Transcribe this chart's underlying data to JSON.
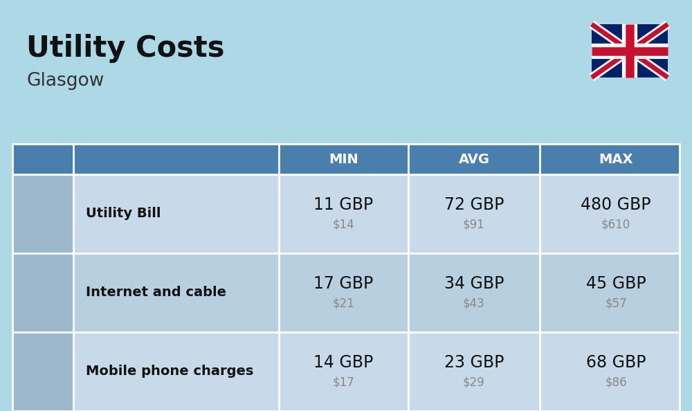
{
  "title": "Utility Costs",
  "subtitle": "Glasgow",
  "background_color": "#add8e6",
  "header_bg_color": "#4a7fad",
  "header_text_color": "#ffffff",
  "row_bg_color_odd": "#c8daea",
  "row_bg_color_even": "#b8cfe0",
  "icon_col_color": "#9db8cc",
  "table_border_color": "#ffffff",
  "col_headers": [
    "MIN",
    "AVG",
    "MAX"
  ],
  "rows": [
    {
      "label": "Utility Bill",
      "min_gbp": "11 GBP",
      "min_usd": "$14",
      "avg_gbp": "72 GBP",
      "avg_usd": "$91",
      "max_gbp": "480 GBP",
      "max_usd": "$610"
    },
    {
      "label": "Internet and cable",
      "min_gbp": "17 GBP",
      "min_usd": "$21",
      "avg_gbp": "34 GBP",
      "avg_usd": "$43",
      "max_gbp": "45 GBP",
      "max_usd": "$57"
    },
    {
      "label": "Mobile phone charges",
      "min_gbp": "14 GBP",
      "min_usd": "$17",
      "avg_gbp": "23 GBP",
      "avg_usd": "$29",
      "max_gbp": "68 GBP",
      "max_usd": "$86"
    }
  ],
  "title_fontsize": 30,
  "subtitle_fontsize": 19,
  "header_fontsize": 14,
  "label_fontsize": 14,
  "value_fontsize": 17,
  "usd_fontsize": 12,
  "flag_uk_blue": "#012169",
  "flag_uk_red": "#C8102E"
}
